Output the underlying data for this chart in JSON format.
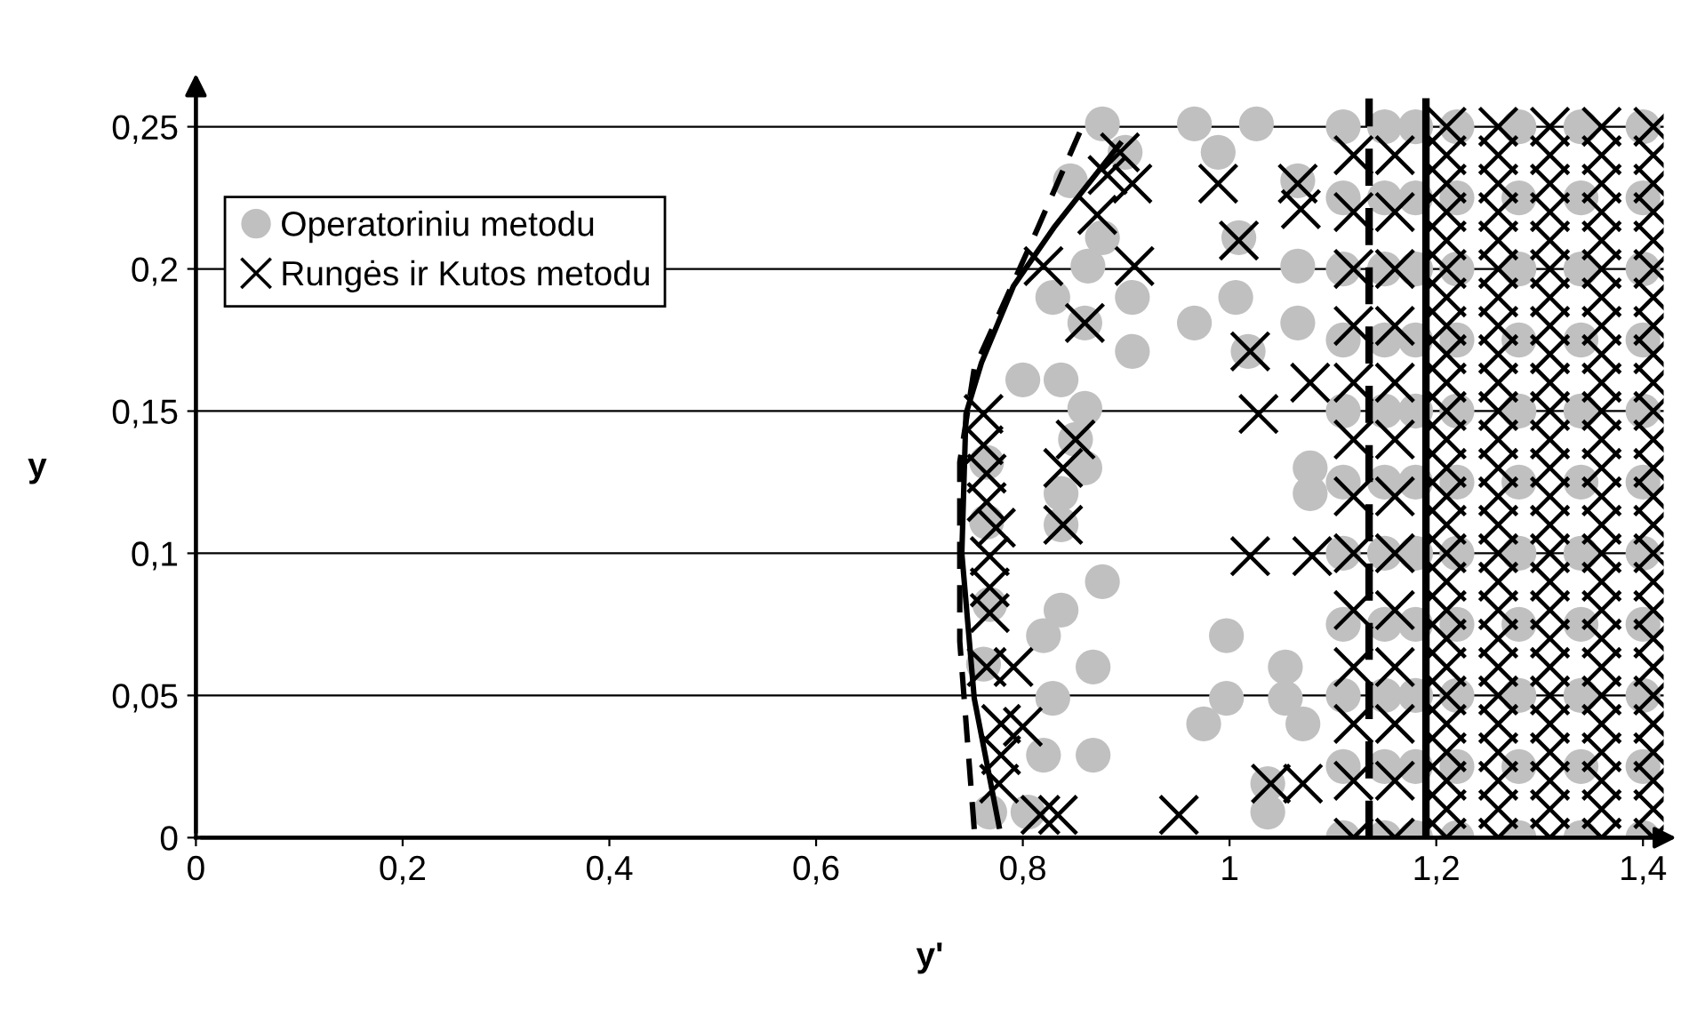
{
  "chart_data": {
    "type": "scatter",
    "xlabel": "y'",
    "ylabel": "y",
    "xlim": [
      0,
      1.42
    ],
    "ylim": [
      0,
      0.26
    ],
    "xticks": [
      0,
      {
        "value": 0.2,
        "label": "0,2"
      },
      {
        "value": 0.4,
        "label": "0,4"
      },
      {
        "value": 0.6,
        "label": "0,6"
      },
      {
        "value": 0.8,
        "label": "0,8"
      },
      1,
      {
        "value": 1.2,
        "label": "1,2"
      },
      {
        "value": 1.4,
        "label": "1,4"
      }
    ],
    "yticks": [
      0,
      {
        "value": 0.05,
        "label": "0,05"
      },
      {
        "value": 0.1,
        "label": "0,1"
      },
      {
        "value": 0.15,
        "label": "0,15"
      },
      {
        "value": 0.2,
        "label": "0,2"
      },
      {
        "value": 0.25,
        "label": "0,25"
      }
    ],
    "grid": "y",
    "legend": "top left",
    "ref_lines": [
      {
        "axis": "x",
        "value": 1.19,
        "color": "#000000",
        "line_style": "solid"
      },
      {
        "axis": "x",
        "value": 1.135,
        "color": "#000000",
        "line_style": "dashed"
      }
    ],
    "series": [
      {
        "name": "Operatoriniu metodu",
        "marker": "circle",
        "color": "#c0c0c0",
        "x": [
          0.877,
          0.966,
          1.026,
          0.899,
          0.989,
          0.846,
          1.066,
          0.877,
          1.009,
          0.863,
          1.066,
          0.829,
          0.906,
          1.006,
          0.966,
          1.066,
          0.86,
          0.906,
          1.018,
          0.8,
          0.837,
          0.86,
          0.851,
          0.86,
          0.837,
          1.078,
          1.078,
          0.837,
          0.765,
          0.765,
          0.877,
          0.837,
          0.82,
          0.868,
          0.997,
          1.054,
          0.829,
          0.997,
          1.054,
          0.975,
          1.071,
          0.82,
          0.868,
          1.037,
          1.037,
          0.768,
          0.805,
          0.762,
          0.768,
          1.11,
          1.11,
          1.11,
          1.11,
          1.11,
          1.11,
          1.11,
          1.11,
          1.11,
          1.11,
          1.11,
          1.15,
          1.15,
          1.15,
          1.15,
          1.15,
          1.15,
          1.15,
          1.15,
          1.15,
          1.15,
          1.15,
          1.18,
          1.18,
          1.18,
          1.18,
          1.18,
          1.18,
          1.18,
          1.18,
          1.18,
          1.18,
          1.18,
          1.22,
          1.22,
          1.22,
          1.22,
          1.22,
          1.22,
          1.22,
          1.22,
          1.22,
          1.22,
          1.22,
          1.28,
          1.28,
          1.28,
          1.28,
          1.28,
          1.28,
          1.28,
          1.28,
          1.28,
          1.28,
          1.28,
          1.34,
          1.34,
          1.34,
          1.34,
          1.34,
          1.34,
          1.34,
          1.34,
          1.34,
          1.34,
          1.34,
          1.4,
          1.4,
          1.4,
          1.4,
          1.4,
          1.4,
          1.4,
          1.4,
          1.4,
          1.4,
          1.4
        ],
        "values": [
          0.251,
          0.251,
          0.251,
          0.241,
          0.241,
          0.231,
          0.231,
          0.211,
          0.211,
          0.201,
          0.201,
          0.19,
          0.19,
          0.19,
          0.181,
          0.181,
          0.181,
          0.171,
          0.171,
          0.161,
          0.161,
          0.151,
          0.14,
          0.13,
          0.121,
          0.13,
          0.121,
          0.11,
          0.132,
          0.111,
          0.09,
          0.08,
          0.071,
          0.06,
          0.071,
          0.06,
          0.049,
          0.049,
          0.049,
          0.04,
          0.04,
          0.029,
          0.029,
          0.019,
          0.009,
          0.009,
          0.009,
          0.061,
          0.082,
          0,
          0.025,
          0.05,
          0.075,
          0.1,
          0.125,
          0.15,
          0.175,
          0.2,
          0.225,
          0.25,
          0,
          0.025,
          0.05,
          0.075,
          0.1,
          0.125,
          0.15,
          0.175,
          0.2,
          0.225,
          0.25,
          0,
          0.025,
          0.05,
          0.075,
          0.1,
          0.125,
          0.15,
          0.175,
          0.2,
          0.225,
          0.25,
          0,
          0.025,
          0.05,
          0.075,
          0.1,
          0.125,
          0.15,
          0.175,
          0.2,
          0.225,
          0.25,
          0,
          0.025,
          0.05,
          0.075,
          0.1,
          0.125,
          0.15,
          0.175,
          0.2,
          0.225,
          0.25,
          0,
          0.025,
          0.05,
          0.075,
          0.1,
          0.125,
          0.15,
          0.175,
          0.2,
          0.225,
          0.25,
          0,
          0.025,
          0.05,
          0.075,
          0.1,
          0.125,
          0.15,
          0.175,
          0.2,
          0.225,
          0.25
        ]
      },
      {
        "name": "Rungės ir Kutos metodu",
        "marker": "cross",
        "color": "#000000",
        "x": [
          0.894,
          0.882,
          0.906,
          0.989,
          1.066,
          0.872,
          1.009,
          1.069,
          0.82,
          0.908,
          0.86,
          1.02,
          1.078,
          1.028,
          0.851,
          0.839,
          0.839,
          1.02,
          1.08,
          0.762,
          0.762,
          0.765,
          0.765,
          0.774,
          0.768,
          0.768,
          0.768,
          0.765,
          0.791,
          0.779,
          0.8,
          0.779,
          0.777,
          0.817,
          0.834,
          0.951,
          1.04,
          1.071,
          1.12,
          1.12,
          1.12,
          1.12,
          1.12,
          1.12,
          1.12,
          1.12,
          1.12,
          1.12,
          1.12,
          1.12,
          1.12,
          1.16,
          1.16,
          1.16,
          1.16,
          1.16,
          1.16,
          1.16,
          1.16,
          1.16,
          1.16,
          1.16,
          1.16,
          1.16,
          1.21,
          1.21,
          1.21,
          1.21,
          1.21,
          1.21,
          1.21,
          1.21,
          1.21,
          1.21,
          1.21,
          1.21,
          1.21,
          1.21,
          1.21,
          1.21,
          1.21,
          1.21,
          1.21,
          1.21,
          1.21,
          1.21,
          1.21,
          1.21,
          1.21,
          1.21,
          1.26,
          1.26,
          1.26,
          1.26,
          1.26,
          1.26,
          1.26,
          1.26,
          1.26,
          1.26,
          1.26,
          1.26,
          1.26,
          1.26,
          1.26,
          1.26,
          1.26,
          1.26,
          1.26,
          1.26,
          1.26,
          1.26,
          1.26,
          1.26,
          1.26,
          1.26,
          1.31,
          1.31,
          1.31,
          1.31,
          1.31,
          1.31,
          1.31,
          1.31,
          1.31,
          1.31,
          1.31,
          1.31,
          1.31,
          1.31,
          1.31,
          1.31,
          1.31,
          1.31,
          1.31,
          1.31,
          1.31,
          1.31,
          1.31,
          1.31,
          1.31,
          1.31,
          1.36,
          1.36,
          1.36,
          1.36,
          1.36,
          1.36,
          1.36,
          1.36,
          1.36,
          1.36,
          1.36,
          1.36,
          1.36,
          1.36,
          1.36,
          1.36,
          1.36,
          1.36,
          1.36,
          1.36,
          1.36,
          1.36,
          1.36,
          1.36,
          1.36,
          1.36,
          1.41,
          1.41,
          1.41,
          1.41,
          1.41,
          1.41,
          1.41,
          1.41,
          1.41,
          1.41,
          1.41,
          1.41,
          1.41,
          1.41,
          1.41,
          1.41,
          1.41,
          1.41,
          1.41,
          1.41,
          1.41,
          1.41,
          1.41,
          1.41,
          1.41,
          1.41
        ],
        "values": [
          0.241,
          0.233,
          0.23,
          0.23,
          0.23,
          0.219,
          0.21,
          0.221,
          0.201,
          0.201,
          0.181,
          0.171,
          0.16,
          0.149,
          0.14,
          0.13,
          0.11,
          0.099,
          0.099,
          0.149,
          0.138,
          0.128,
          0.118,
          0.109,
          0.099,
          0.088,
          0.079,
          0.06,
          0.06,
          0.04,
          0.039,
          0.029,
          0.019,
          0.008,
          0.008,
          0.008,
          0.019,
          0.019,
          0,
          0.02,
          0.04,
          0.06,
          0.08,
          0.1,
          0.12,
          0.14,
          0.16,
          0.18,
          0.2,
          0.22,
          0.24,
          0,
          0.02,
          0.04,
          0.06,
          0.08,
          0.1,
          0.12,
          0.14,
          0.16,
          0.18,
          0.2,
          0.22,
          0.24,
          0,
          0.01,
          0.02,
          0.03,
          0.04,
          0.05,
          0.06,
          0.07,
          0.08,
          0.09,
          0.1,
          0.11,
          0.12,
          0.13,
          0.14,
          0.15,
          0.16,
          0.17,
          0.18,
          0.19,
          0.2,
          0.21,
          0.22,
          0.23,
          0.24,
          0.25,
          0,
          0.01,
          0.02,
          0.03,
          0.04,
          0.05,
          0.06,
          0.07,
          0.08,
          0.09,
          0.1,
          0.11,
          0.12,
          0.13,
          0.14,
          0.15,
          0.16,
          0.17,
          0.18,
          0.19,
          0.2,
          0.21,
          0.22,
          0.23,
          0.24,
          0.25,
          0,
          0.01,
          0.02,
          0.03,
          0.04,
          0.05,
          0.06,
          0.07,
          0.08,
          0.09,
          0.1,
          0.11,
          0.12,
          0.13,
          0.14,
          0.15,
          0.16,
          0.17,
          0.18,
          0.19,
          0.2,
          0.21,
          0.22,
          0.23,
          0.24,
          0.25,
          0,
          0.01,
          0.02,
          0.03,
          0.04,
          0.05,
          0.06,
          0.07,
          0.08,
          0.09,
          0.1,
          0.11,
          0.12,
          0.13,
          0.14,
          0.15,
          0.16,
          0.17,
          0.18,
          0.19,
          0.2,
          0.21,
          0.22,
          0.23,
          0.24,
          0.25,
          0,
          0.01,
          0.02,
          0.03,
          0.04,
          0.05,
          0.06,
          0.07,
          0.08,
          0.09,
          0.1,
          0.11,
          0.12,
          0.13,
          0.14,
          0.15,
          0.16,
          0.17,
          0.18,
          0.19,
          0.2,
          0.21,
          0.22,
          0.23,
          0.24,
          0.25
        ]
      },
      {
        "type": "line",
        "color": "#000000",
        "line_style": "solid",
        "marker": "none",
        "x": [
          0.777,
          0.753,
          0.741,
          0.745,
          0.76,
          0.791,
          0.831,
          0.894
        ],
        "values": [
          0.004,
          0.049,
          0.1,
          0.149,
          0.167,
          0.194,
          0.215,
          0.244
        ]
      },
      {
        "type": "line",
        "color": "#000000",
        "line_style": "dashed",
        "marker": "none",
        "x": [
          0.753,
          0.739,
          0.739,
          0.753,
          0.808,
          0.855
        ],
        "values": [
          0.003,
          0.069,
          0.132,
          0.165,
          0.209,
          0.248
        ]
      }
    ]
  }
}
